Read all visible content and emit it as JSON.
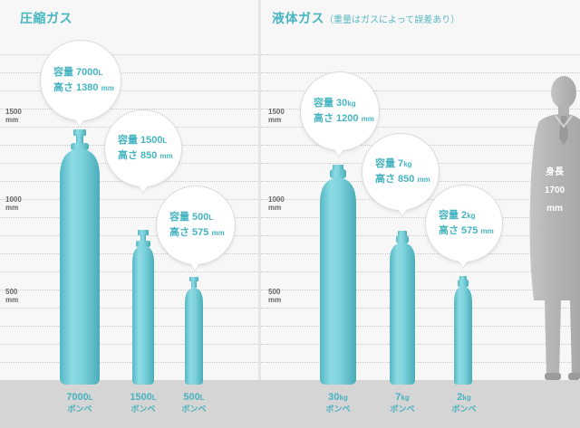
{
  "compressed": {
    "title": "圧縮ガス",
    "scale": [
      "1500",
      "1000",
      "500"
    ],
    "scale_unit": "mm",
    "cylinders": [
      {
        "line1": "容量 7000",
        "unit1": "L",
        "line2": "高さ 1380",
        "unit2": "mm",
        "label_value": "7000",
        "label_unit": "L",
        "label_sub": "ボンベ"
      },
      {
        "line1": "容量 1500",
        "unit1": "L",
        "line2": "高さ 850",
        "unit2": "mm",
        "label_value": "1500",
        "label_unit": "L",
        "label_sub": "ボンベ"
      },
      {
        "line1": "容量 500",
        "unit1": "L",
        "line2": "高さ 575",
        "unit2": "mm",
        "label_value": "500",
        "label_unit": "L",
        "label_sub": "ボンベ"
      }
    ]
  },
  "liquefied": {
    "title": "液体ガス",
    "subtitle": "（重量はガスによって誤差あり）",
    "scale": [
      "1500",
      "1000",
      "500"
    ],
    "scale_unit": "mm",
    "cylinders": [
      {
        "line1": "容量 30",
        "unit1": "kg",
        "line2": "高さ 1200",
        "unit2": "mm",
        "label_value": "30",
        "label_unit": "kg",
        "label_sub": "ボンベ"
      },
      {
        "line1": "容量 7",
        "unit1": "kg",
        "line2": "高さ 850",
        "unit2": "mm",
        "label_value": "7",
        "label_unit": "kg",
        "label_sub": "ボンベ"
      },
      {
        "line1": "容量 2",
        "unit1": "kg",
        "line2": "高さ 575",
        "unit2": "mm",
        "label_value": "2",
        "label_unit": "kg",
        "label_sub": "ボンベ"
      }
    ],
    "person": {
      "line1": "身長",
      "line2": "1700",
      "line3": "mm"
    }
  },
  "colors": {
    "accent": "#49b6c2",
    "cylinder_light": "#8fdde6",
    "cylinder_dark": "#4fb4bf",
    "person": "#b9b9b9"
  }
}
